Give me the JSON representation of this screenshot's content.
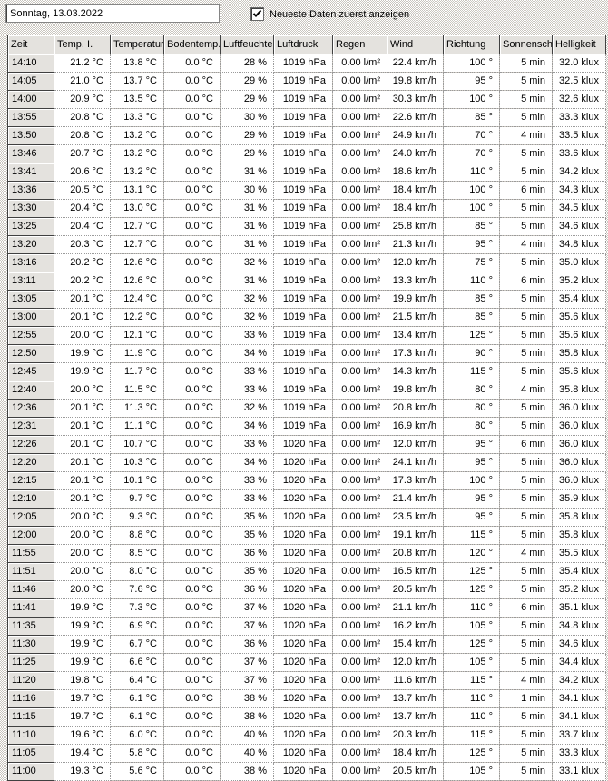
{
  "toolbar": {
    "date_value": "Sonntag, 13.03.2022",
    "checkbox_label": "Neueste Daten zuerst anzeigen",
    "checkbox_checked": true
  },
  "colors": {
    "window_gray": "#d6d2cb",
    "cell_white": "#ffffff",
    "grid_line": "#9a9a9a",
    "text": "#000000"
  },
  "table": {
    "columns": [
      {
        "key": "zeit",
        "label": "Zeit",
        "suffix": "",
        "decimals": null
      },
      {
        "key": "temp_i",
        "label": "Temp. I.",
        "suffix": " °C",
        "decimals": 1
      },
      {
        "key": "temperatur",
        "label": "Temperatur",
        "suffix": " °C",
        "decimals": 1
      },
      {
        "key": "bodentemp",
        "label": "Bodentemp.",
        "suffix": " °C",
        "decimals": 1
      },
      {
        "key": "luftfeuchte",
        "label": "Luftfeuchte",
        "suffix": " %",
        "decimals": 0
      },
      {
        "key": "luftdruck",
        "label": "Luftdruck",
        "suffix": " hPa",
        "decimals": 0
      },
      {
        "key": "regen",
        "label": "Regen",
        "suffix": " l/m²",
        "decimals": 2
      },
      {
        "key": "wind",
        "label": "Wind",
        "suffix": " km/h",
        "decimals": 1
      },
      {
        "key": "richtung",
        "label": "Richtung",
        "suffix": " °",
        "decimals": 0
      },
      {
        "key": "sonnenschein",
        "label": "Sonnenschein",
        "suffix": " min",
        "decimals": 0
      },
      {
        "key": "helligkeit",
        "label": "Helligkeit",
        "suffix": " klux",
        "decimals": 1
      }
    ],
    "rows": [
      [
        "14:10",
        21.2,
        13.8,
        0.0,
        28,
        1019,
        0.0,
        22.4,
        100,
        5,
        32.0
      ],
      [
        "14:05",
        21.0,
        13.7,
        0.0,
        29,
        1019,
        0.0,
        19.8,
        95,
        5,
        32.5
      ],
      [
        "14:00",
        20.9,
        13.5,
        0.0,
        29,
        1019,
        0.0,
        30.3,
        100,
        5,
        32.6
      ],
      [
        "13:55",
        20.8,
        13.3,
        0.0,
        30,
        1019,
        0.0,
        22.6,
        85,
        5,
        33.3
      ],
      [
        "13:50",
        20.8,
        13.2,
        0.0,
        29,
        1019,
        0.0,
        24.9,
        70,
        4,
        33.5
      ],
      [
        "13:46",
        20.7,
        13.2,
        0.0,
        29,
        1019,
        0.0,
        24.0,
        70,
        5,
        33.6
      ],
      [
        "13:41",
        20.6,
        13.2,
        0.0,
        31,
        1019,
        0.0,
        18.6,
        110,
        5,
        34.2
      ],
      [
        "13:36",
        20.5,
        13.1,
        0.0,
        30,
        1019,
        0.0,
        18.4,
        100,
        6,
        34.3
      ],
      [
        "13:30",
        20.4,
        13.0,
        0.0,
        31,
        1019,
        0.0,
        18.4,
        100,
        5,
        34.5
      ],
      [
        "13:25",
        20.4,
        12.7,
        0.0,
        31,
        1019,
        0.0,
        25.8,
        85,
        5,
        34.6
      ],
      [
        "13:20",
        20.3,
        12.7,
        0.0,
        31,
        1019,
        0.0,
        21.3,
        95,
        4,
        34.8
      ],
      [
        "13:16",
        20.2,
        12.6,
        0.0,
        32,
        1019,
        0.0,
        12.0,
        75,
        5,
        35.0
      ],
      [
        "13:11",
        20.2,
        12.6,
        0.0,
        31,
        1019,
        0.0,
        13.3,
        110,
        6,
        35.2
      ],
      [
        "13:05",
        20.1,
        12.4,
        0.0,
        32,
        1019,
        0.0,
        19.9,
        85,
        5,
        35.4
      ],
      [
        "13:00",
        20.1,
        12.2,
        0.0,
        32,
        1019,
        0.0,
        21.5,
        85,
        5,
        35.6
      ],
      [
        "12:55",
        20.0,
        12.1,
        0.0,
        33,
        1019,
        0.0,
        13.4,
        125,
        5,
        35.6
      ],
      [
        "12:50",
        19.9,
        11.9,
        0.0,
        34,
        1019,
        0.0,
        17.3,
        90,
        5,
        35.8
      ],
      [
        "12:45",
        19.9,
        11.7,
        0.0,
        33,
        1019,
        0.0,
        14.3,
        115,
        5,
        35.6
      ],
      [
        "12:40",
        20.0,
        11.5,
        0.0,
        33,
        1019,
        0.0,
        19.8,
        80,
        4,
        35.8
      ],
      [
        "12:36",
        20.1,
        11.3,
        0.0,
        32,
        1019,
        0.0,
        20.8,
        80,
        5,
        36.0
      ],
      [
        "12:31",
        20.1,
        11.1,
        0.0,
        34,
        1019,
        0.0,
        16.9,
        80,
        5,
        36.0
      ],
      [
        "12:26",
        20.1,
        10.7,
        0.0,
        33,
        1020,
        0.0,
        12.0,
        95,
        6,
        36.0
      ],
      [
        "12:20",
        20.1,
        10.3,
        0.0,
        34,
        1020,
        0.0,
        24.1,
        95,
        5,
        36.0
      ],
      [
        "12:15",
        20.1,
        10.1,
        0.0,
        33,
        1020,
        0.0,
        17.3,
        100,
        5,
        36.0
      ],
      [
        "12:10",
        20.1,
        9.7,
        0.0,
        33,
        1020,
        0.0,
        21.4,
        95,
        5,
        35.9
      ],
      [
        "12:05",
        20.0,
        9.3,
        0.0,
        35,
        1020,
        0.0,
        23.5,
        95,
        5,
        35.8
      ],
      [
        "12:00",
        20.0,
        8.8,
        0.0,
        35,
        1020,
        0.0,
        19.1,
        115,
        5,
        35.8
      ],
      [
        "11:55",
        20.0,
        8.5,
        0.0,
        36,
        1020,
        0.0,
        20.8,
        120,
        4,
        35.5
      ],
      [
        "11:51",
        20.0,
        8.0,
        0.0,
        35,
        1020,
        0.0,
        16.5,
        125,
        5,
        35.4
      ],
      [
        "11:46",
        20.0,
        7.6,
        0.0,
        36,
        1020,
        0.0,
        20.5,
        125,
        5,
        35.2
      ],
      [
        "11:41",
        19.9,
        7.3,
        0.0,
        37,
        1020,
        0.0,
        21.1,
        110,
        6,
        35.1
      ],
      [
        "11:35",
        19.9,
        6.9,
        0.0,
        37,
        1020,
        0.0,
        16.2,
        105,
        5,
        34.8
      ],
      [
        "11:30",
        19.9,
        6.7,
        0.0,
        36,
        1020,
        0.0,
        15.4,
        125,
        5,
        34.6
      ],
      [
        "11:25",
        19.9,
        6.6,
        0.0,
        37,
        1020,
        0.0,
        12.0,
        105,
        5,
        34.4
      ],
      [
        "11:20",
        19.8,
        6.4,
        0.0,
        37,
        1020,
        0.0,
        11.6,
        115,
        4,
        34.2
      ],
      [
        "11:16",
        19.7,
        6.1,
        0.0,
        38,
        1020,
        0.0,
        13.7,
        110,
        1,
        34.1
      ],
      [
        "11:15",
        19.7,
        6.1,
        0.0,
        38,
        1020,
        0.0,
        13.7,
        110,
        5,
        34.1
      ],
      [
        "11:10",
        19.6,
        6.0,
        0.0,
        40,
        1020,
        0.0,
        20.3,
        115,
        5,
        33.7
      ],
      [
        "11:05",
        19.4,
        5.8,
        0.0,
        40,
        1020,
        0.0,
        18.4,
        125,
        5,
        33.3
      ],
      [
        "11:00",
        19.3,
        5.6,
        0.0,
        38,
        1020,
        0.0,
        20.5,
        105,
        5,
        33.1
      ]
    ]
  }
}
